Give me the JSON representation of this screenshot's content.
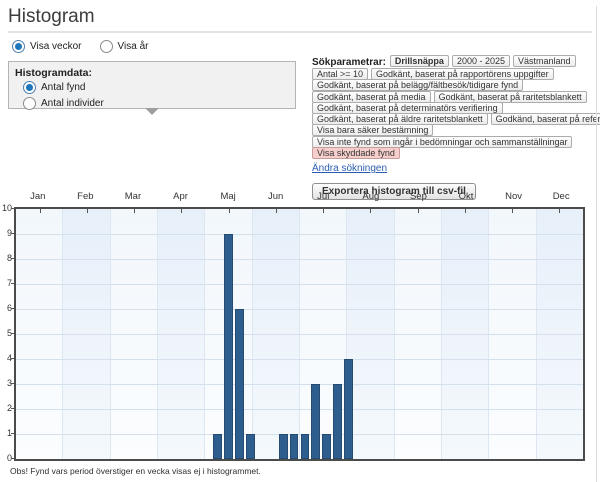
{
  "page": {
    "title": "Histogram",
    "footnote": "Obs! Fynd vars period överstiger en vecka visas ej i histogrammet."
  },
  "view_toggle": {
    "options": [
      {
        "label": "Visa veckor",
        "selected": true
      },
      {
        "label": "Visa år",
        "selected": false
      }
    ]
  },
  "histogram_data_panel": {
    "title": "Histogramdata:",
    "options": [
      {
        "label": "Antal fynd",
        "selected": true
      },
      {
        "label": "Antal individer",
        "selected": false
      }
    ]
  },
  "search_params": {
    "label": "Sökparametrar:",
    "rows": [
      [
        "Drillsnäppa",
        "2000 - 2025",
        "Västmanland"
      ],
      [
        "Antal >= 10",
        "Godkänt, baserat på rapportörens uppgifter"
      ],
      [
        "Godkänt, baserat på belägg/fältbesök/tidigare fynd"
      ],
      [
        "Godkänt, baserat på media",
        "Godkänt, baserat på raritetsblankett"
      ],
      [
        "Godkänt, baserat på determinatörs verifiering"
      ],
      [
        "Godkänt, baserat på äldre raritetsblankett",
        "Godkänd, baserat på referens"
      ],
      [
        "Visa bara säker bestämning"
      ],
      [
        "Visa inte fynd som ingår i bedömningar och sammanställningar"
      ],
      [
        "Visa skyddade fynd"
      ]
    ],
    "bold_tag": "Drillsnäppa",
    "highlighted_tag": "Visa skyddade fynd",
    "edit_link": "Ändra sökningen",
    "export_button": "Exportera histogram till csv-fil"
  },
  "chart_data": {
    "type": "bar",
    "x_unit": "week-of-year",
    "weeks_per_year": 52,
    "months": [
      "Jan",
      "Feb",
      "Mar",
      "Apr",
      "Maj",
      "Jun",
      "Jul",
      "Aug",
      "Sep",
      "Okt",
      "Nov",
      "Dec"
    ],
    "y_ticks": [
      10,
      9,
      8,
      7,
      6,
      5,
      4,
      3,
      2,
      1,
      0
    ],
    "ylim": [
      0,
      10
    ],
    "bars": [
      {
        "week": 19,
        "value": 1
      },
      {
        "week": 20,
        "value": 9
      },
      {
        "week": 21,
        "value": 6
      },
      {
        "week": 22,
        "value": 1
      },
      {
        "week": 25,
        "value": 1
      },
      {
        "week": 26,
        "value": 1
      },
      {
        "week": 27,
        "value": 1
      },
      {
        "week": 28,
        "value": 3
      },
      {
        "week": 29,
        "value": 1
      },
      {
        "week": 30,
        "value": 3
      },
      {
        "week": 31,
        "value": 4
      }
    ],
    "colors": {
      "bar": "#2e5e8e",
      "bar_border": "#254b72",
      "grid": "#d4e0ec",
      "column_even": "#e7eff9",
      "column_odd": "#f2f7fc",
      "plot_border": "#4b4b4b",
      "highlight_tag_bg": "#f6cecb",
      "link": "#2a5db0"
    }
  }
}
